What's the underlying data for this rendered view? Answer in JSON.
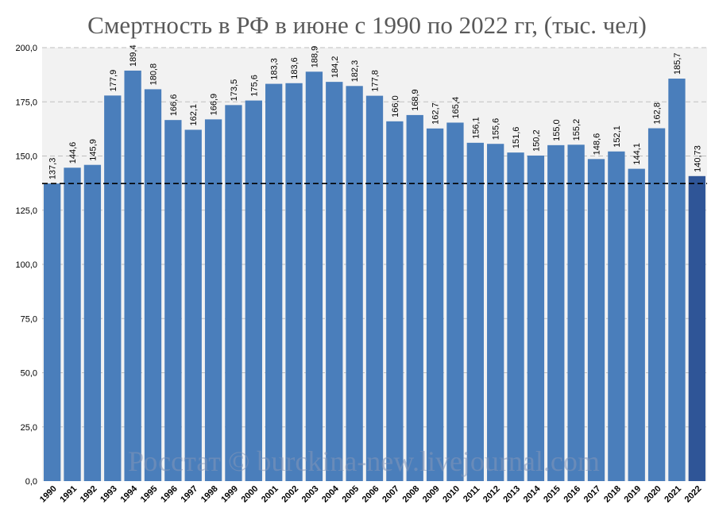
{
  "chart_data": {
    "type": "bar",
    "title": "Смертность в РФ в июне с 1990 по 2022 гг, (тыс. чел)",
    "watermark": "Росстат © burckina-new.livejournal.com",
    "categories": [
      "1990",
      "1991",
      "1992",
      "1993",
      "1994",
      "1995",
      "1996",
      "1997",
      "1998",
      "1999",
      "2000",
      "2001",
      "2002",
      "2003",
      "2004",
      "2005",
      "2006",
      "2007",
      "2008",
      "2009",
      "2010",
      "2011",
      "2012",
      "2013",
      "2014",
      "2015",
      "2016",
      "2017",
      "2018",
      "2019",
      "2020",
      "2021",
      "2022"
    ],
    "values": [
      137.3,
      144.6,
      145.9,
      177.9,
      189.4,
      180.8,
      166.6,
      162.1,
      166.9,
      173.5,
      175.6,
      183.3,
      183.6,
      188.9,
      184.2,
      182.3,
      177.8,
      166.0,
      168.9,
      162.7,
      165.4,
      156.1,
      155.6,
      151.6,
      150.2,
      155.0,
      155.2,
      148.6,
      152.1,
      144.1,
      162.8,
      185.7,
      140.73
    ],
    "value_labels": [
      "137,3",
      "144,6",
      "145,9",
      "177,9",
      "189,4",
      "180,8",
      "166,6",
      "162,1",
      "166,9",
      "173,5",
      "175,6",
      "183,3",
      "183,6",
      "188,9",
      "184,2",
      "182,3",
      "177,8",
      "166,0",
      "168,9",
      "162,7",
      "165,4",
      "156,1",
      "155,6",
      "151,6",
      "150,2",
      "155,0",
      "155,2",
      "148,6",
      "152,1",
      "144,1",
      "162,8",
      "185,7",
      "140,73"
    ],
    "yticks": [
      0,
      25,
      50,
      75,
      100,
      125,
      150,
      175,
      200
    ],
    "ytick_labels": [
      "0,0",
      "25,0",
      "50,0",
      "75,0",
      "100,0",
      "125,0",
      "150,0",
      "175,0",
      "200,0"
    ],
    "ylim": [
      0,
      200
    ],
    "reference_line": 137.3,
    "grid": true,
    "colors": {
      "bar": "#4a7ebb",
      "highlight_bar": "#2f5597",
      "plot_background": "#f2f2f2",
      "gridline": "#bfbfbf",
      "reference_line": "#000000"
    },
    "highlight_index": 32
  }
}
